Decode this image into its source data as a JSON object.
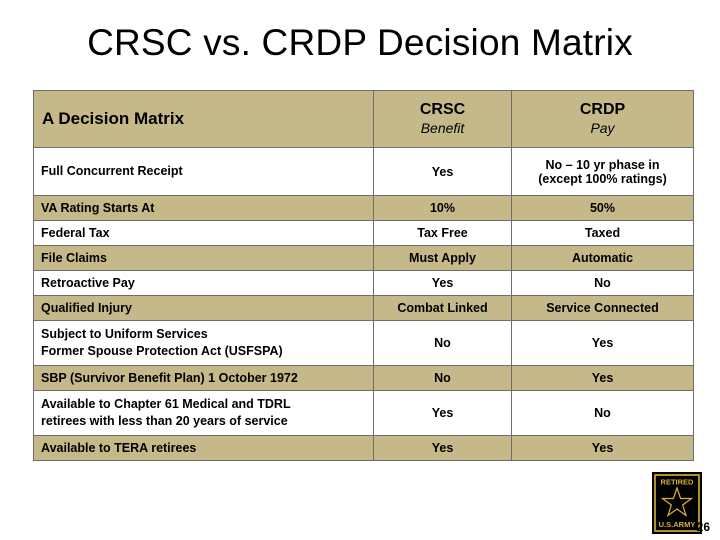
{
  "title": "CRSC vs. CRDP Decision Matrix",
  "table": {
    "header": {
      "col1": "A Decision Matrix",
      "col2_main": "CRSC",
      "col2_sub": "Benefit",
      "col3_main": "CRDP",
      "col3_sub": "Pay"
    },
    "rows": [
      {
        "label_lines": [
          "Full Concurrent Receipt"
        ],
        "crsc": "Yes",
        "crdp_lines": [
          "No – 10 yr phase in",
          "(except 100% ratings)"
        ]
      },
      {
        "label_lines": [
          "VA Rating Starts At"
        ],
        "crsc": "10%",
        "crdp_lines": [
          "50%"
        ]
      },
      {
        "label_lines": [
          "Federal Tax"
        ],
        "crsc": "Tax Free",
        "crdp_lines": [
          "Taxed"
        ]
      },
      {
        "label_lines": [
          "File Claims"
        ],
        "crsc": "Must Apply",
        "crdp_lines": [
          "Automatic"
        ]
      },
      {
        "label_lines": [
          "Retroactive Pay"
        ],
        "crsc": "Yes",
        "crdp_lines": [
          "No"
        ]
      },
      {
        "label_lines": [
          "Qualified Injury"
        ],
        "crsc": "Combat Linked",
        "crdp_lines": [
          "Service Connected"
        ]
      },
      {
        "label_lines": [
          "Subject to Uniform Services",
          "Former Spouse Protection Act (USFSPA)"
        ],
        "crsc": "No",
        "crdp_lines": [
          "Yes"
        ]
      },
      {
        "label_lines": [
          "SBP (Survivor Benefit Plan) 1 October 1972"
        ],
        "crsc": "No",
        "crdp_lines": [
          "Yes"
        ]
      },
      {
        "label_lines": [
          "Available to Chapter 61 Medical and TDRL",
          "retirees with less than 20 years of service"
        ],
        "crsc": "Yes",
        "crdp_lines": [
          "No"
        ]
      },
      {
        "label_lines": [
          "Available to TERA retirees"
        ],
        "crsc": "Yes",
        "crdp_lines": [
          "Yes"
        ]
      }
    ]
  },
  "logo": {
    "top_text": "RETIRED",
    "bottom_text": "U.S.ARMY",
    "colors": {
      "black": "#000000",
      "gold": "#d9b430"
    }
  },
  "colors": {
    "row_tan": "#c5b98a",
    "border": "#6e6e6e"
  },
  "page_number": "26"
}
